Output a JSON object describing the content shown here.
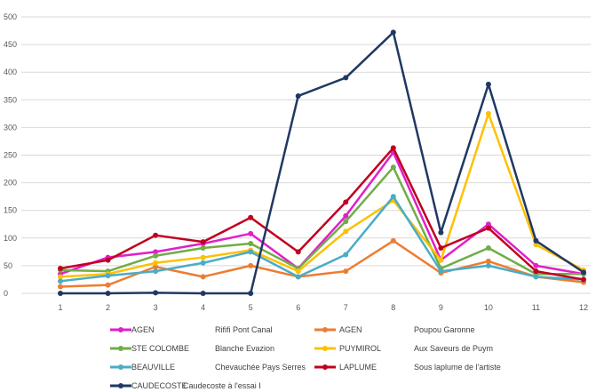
{
  "chart_data": {
    "type": "line",
    "title": "",
    "xlabel": "",
    "ylabel": "",
    "ylim": [
      0,
      500
    ],
    "yticks": [
      0,
      50,
      100,
      150,
      200,
      250,
      300,
      350,
      400,
      450,
      500
    ],
    "x": [
      "1",
      "2",
      "3",
      "4",
      "5",
      "6",
      "7",
      "8",
      "9",
      "10",
      "11",
      "12"
    ],
    "grid": true,
    "legend_position": "bottom",
    "series": [
      {
        "name": "AGEN",
        "sub": "Rififi Pont Canal",
        "color": "#e020c8",
        "values": [
          35,
          65,
          75,
          90,
          108,
          45,
          140,
          255,
          60,
          125,
          50,
          35
        ]
      },
      {
        "name": "AGEN",
        "sub": "Poupou Garonne",
        "color": "#ed7d31",
        "values": [
          12,
          15,
          48,
          30,
          50,
          30,
          40,
          95,
          37,
          58,
          30,
          20
        ]
      },
      {
        "name": "STE COLOMBE",
        "sub": "Blanche Evazion",
        "color": "#70ad47",
        "values": [
          42,
          40,
          68,
          82,
          90,
          45,
          130,
          228,
          45,
          82,
          35,
          35
        ]
      },
      {
        "name": "PUYMIROL",
        "sub": "Aux Saveurs de Puym",
        "color": "#ffc000",
        "values": [
          30,
          35,
          55,
          65,
          78,
          40,
          112,
          168,
          60,
          325,
          88,
          42
        ]
      },
      {
        "name": "BEAUVILLE",
        "sub": "Chevauchée Pays Serres",
        "color": "#4bacc6",
        "values": [
          22,
          32,
          40,
          55,
          75,
          30,
          70,
          175,
          40,
          50,
          30,
          25
        ]
      },
      {
        "name": "LAPLUME",
        "sub": "Sous laplume de l'artiste",
        "color": "#c00020",
        "values": [
          45,
          60,
          105,
          93,
          137,
          75,
          165,
          263,
          82,
          118,
          40,
          25
        ]
      },
      {
        "name": "CAUDECOSTE",
        "sub": "Caudecoste à l'essai I",
        "color": "#203864",
        "values": [
          0,
          0,
          1,
          0,
          0,
          357,
          390,
          472,
          110,
          378,
          95,
          38
        ]
      }
    ]
  }
}
